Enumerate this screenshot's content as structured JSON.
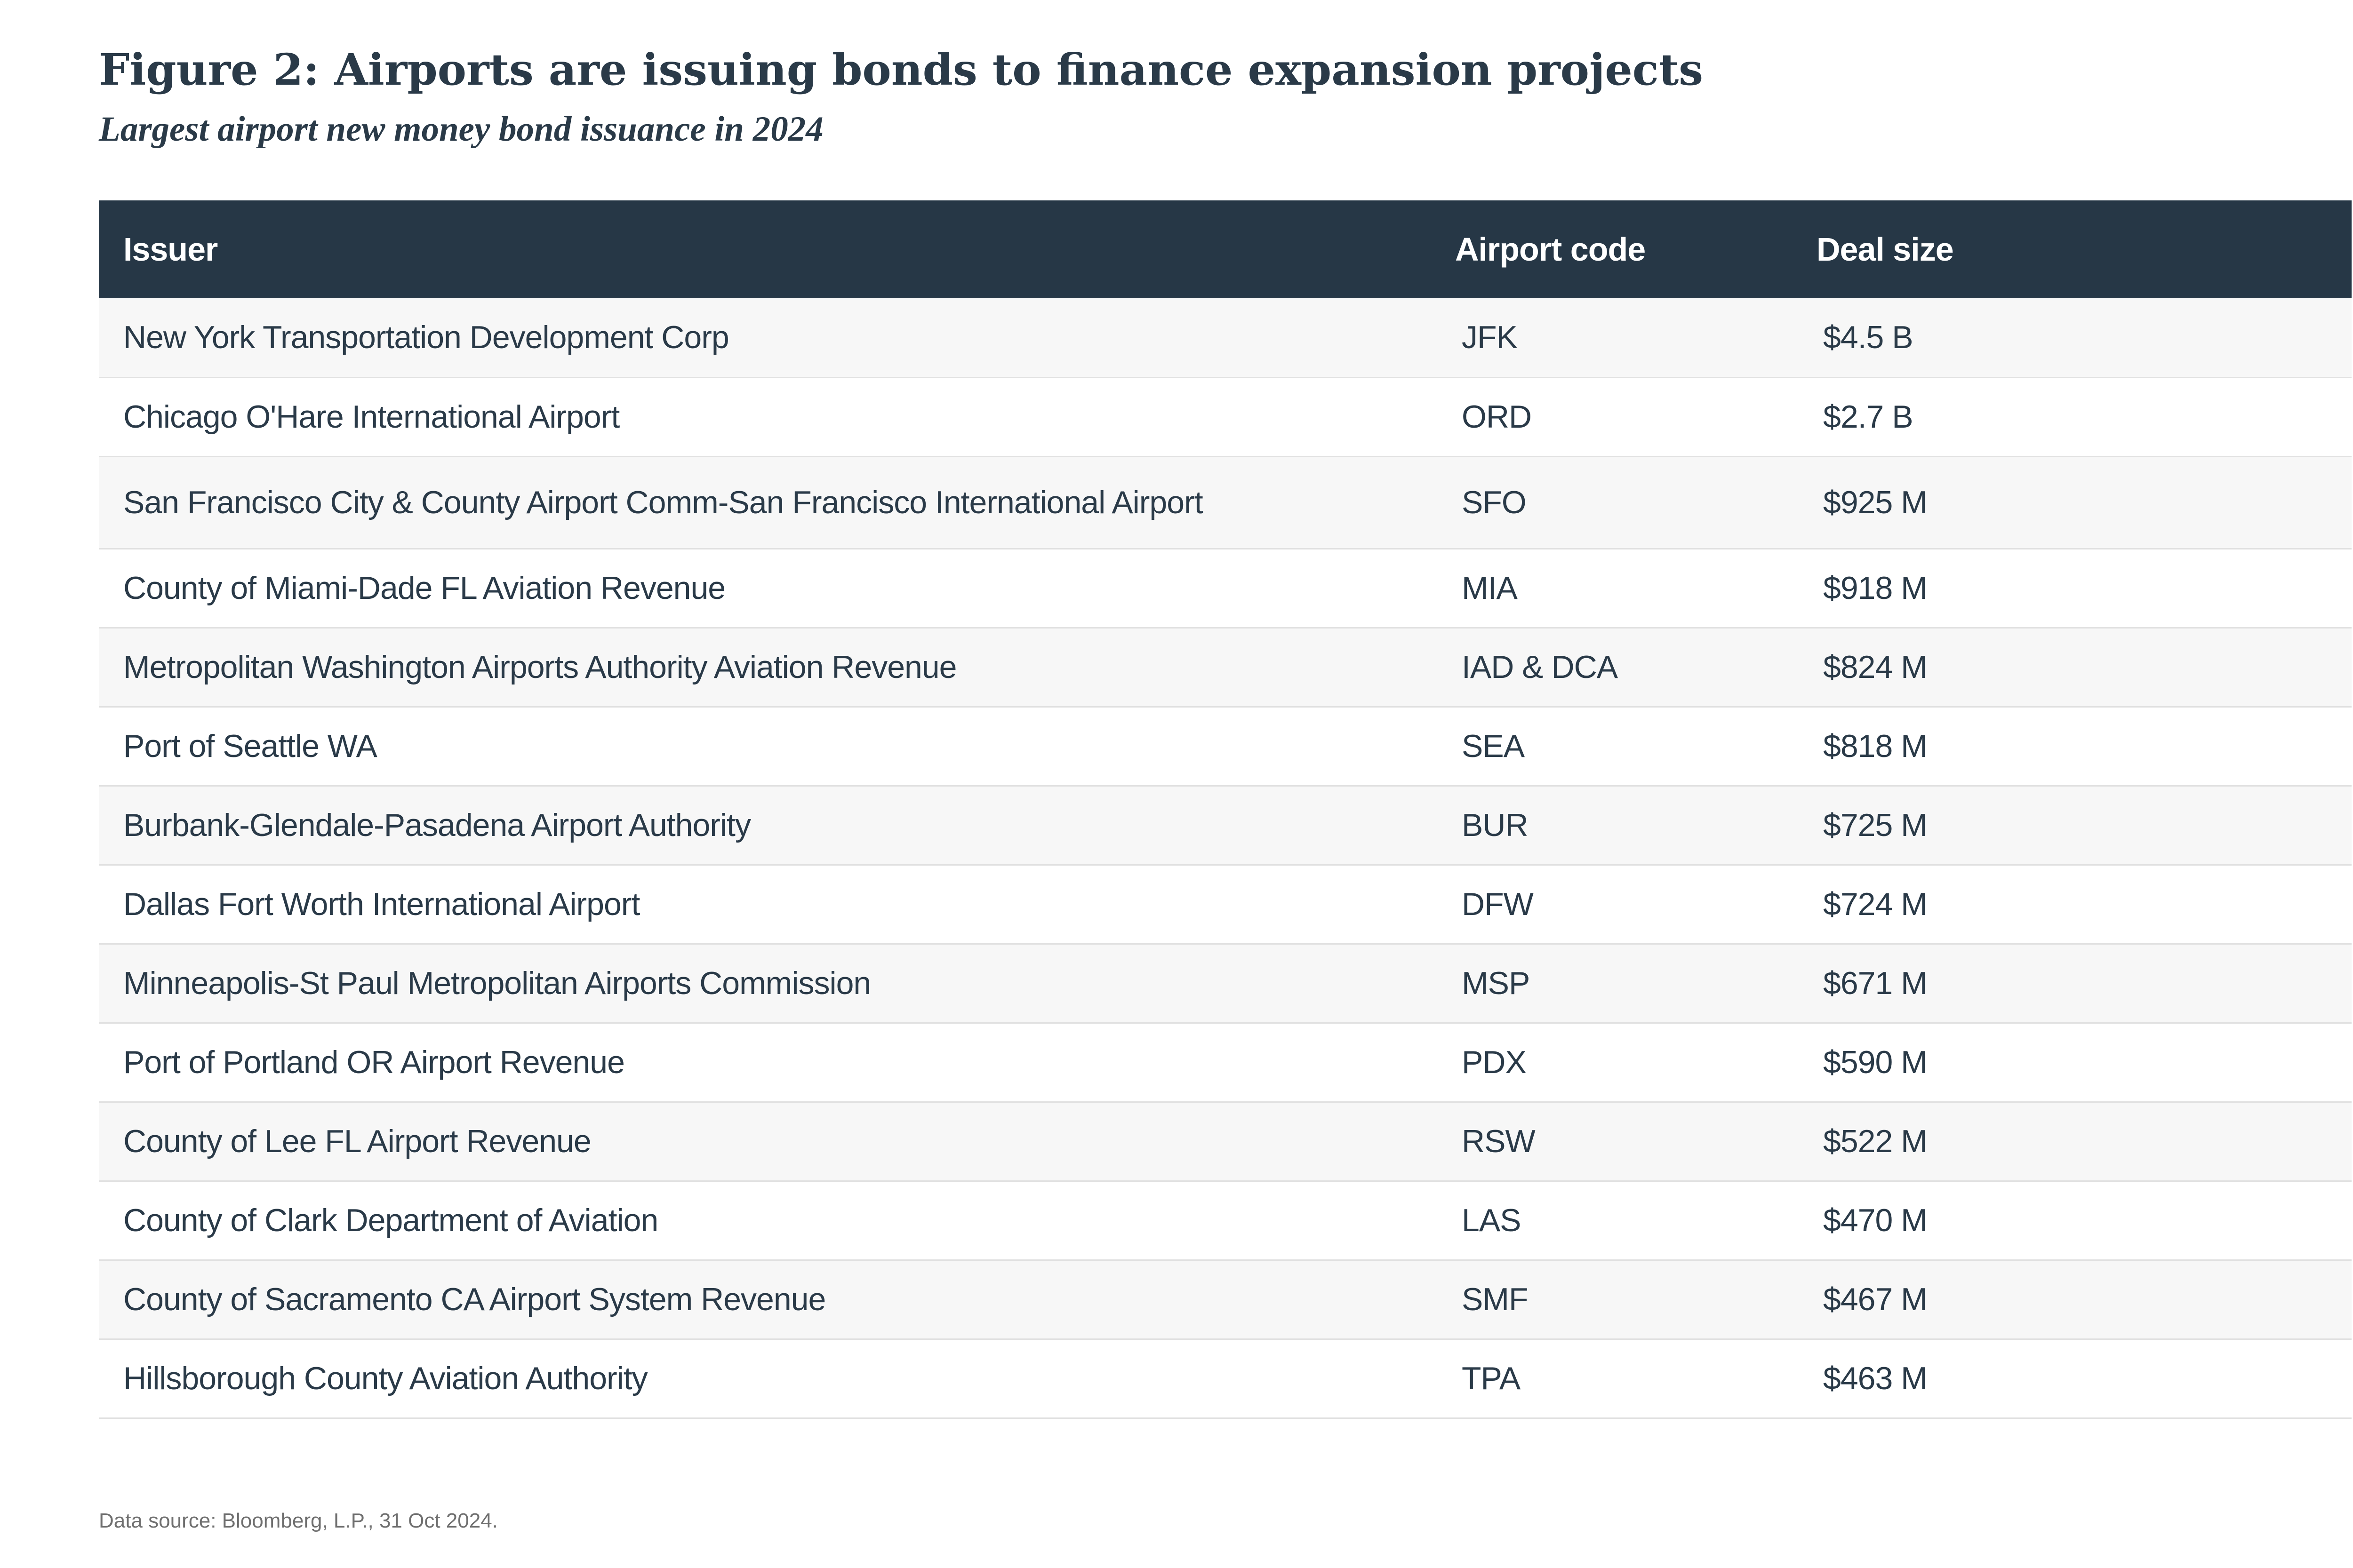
{
  "chart_data": {
    "type": "table",
    "title": "Figure 2: Airports are issuing bonds to finance expansion projects",
    "subtitle": "Largest airport new money bond issuance in 2024",
    "columns": [
      "Issuer",
      "Airport code",
      "Deal size"
    ],
    "rows": [
      {
        "issuer": "New York Transportation Development Corp",
        "code": "JFK",
        "deal_size": "$4.5 B"
      },
      {
        "issuer": "Chicago O'Hare International Airport",
        "code": "ORD",
        "deal_size": "$2.7 B"
      },
      {
        "issuer": "San Francisco City & County Airport Comm-San Francisco International Airport",
        "code": "SFO",
        "deal_size": "$925 M"
      },
      {
        "issuer": "County of Miami-Dade FL Aviation Revenue",
        "code": "MIA",
        "deal_size": "$918 M"
      },
      {
        "issuer": "Metropolitan Washington Airports Authority Aviation Revenue",
        "code": "IAD & DCA",
        "deal_size": "$824 M"
      },
      {
        "issuer": "Port of Seattle WA",
        "code": "SEA",
        "deal_size": "$818 M"
      },
      {
        "issuer": "Burbank-Glendale-Pasadena Airport Authority",
        "code": "BUR",
        "deal_size": "$725 M"
      },
      {
        "issuer": "Dallas Fort Worth International Airport",
        "code": "DFW",
        "deal_size": "$724 M"
      },
      {
        "issuer": "Minneapolis-St Paul Metropolitan Airports Commission",
        "code": "MSP",
        "deal_size": "$671 M"
      },
      {
        "issuer": "Port of Portland OR Airport Revenue",
        "code": "PDX",
        "deal_size": "$590 M"
      },
      {
        "issuer": "County of Lee FL Airport Revenue",
        "code": "RSW",
        "deal_size": "$522 M"
      },
      {
        "issuer": "County of Clark Department of Aviation",
        "code": "LAS",
        "deal_size": "$470 M"
      },
      {
        "issuer": "County of Sacramento CA Airport System Revenue",
        "code": "SMF",
        "deal_size": "$467 M"
      },
      {
        "issuer": "Hillsborough County Aviation Authority",
        "code": "TPA",
        "deal_size": "$463 M"
      }
    ],
    "source": "Data source: Bloomberg, L.P., 31 Oct 2024."
  },
  "colors": {
    "header_background": "#263746",
    "header_text": "#ffffff",
    "body_text": "#2a3a48",
    "row_alt": "#f7f7f7",
    "row_divider": "#e1e1e1"
  }
}
